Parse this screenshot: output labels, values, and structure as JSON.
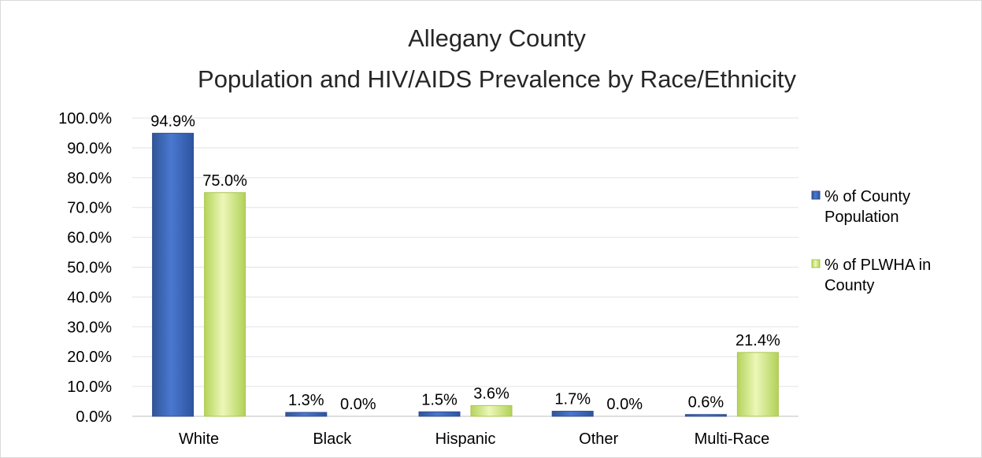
{
  "chart_data": {
    "type": "bar",
    "title": "Allegany County",
    "subtitle": "Population and HIV/AIDS Prevalence by Race/Ethnicity",
    "categories": [
      "White",
      "Black",
      "Hispanic",
      "Other",
      "Multi-Race"
    ],
    "series": [
      {
        "name": "% of County Population",
        "legend_lines": [
          "% of County",
          "Population"
        ],
        "values": [
          94.9,
          1.3,
          1.5,
          1.7,
          0.6
        ],
        "labels": [
          "94.9%",
          "1.3%",
          "1.5%",
          "1.7%",
          "0.6%"
        ],
        "color": "#4472C4"
      },
      {
        "name": "% of PLWHA in County",
        "legend_lines": [
          "% of PLWHA in",
          "County"
        ],
        "values": [
          75.0,
          0.0,
          3.6,
          0.0,
          21.4
        ],
        "labels": [
          "75.0%",
          "0.0%",
          "3.6%",
          "0.0%",
          "21.4%"
        ],
        "color": "#C5E07A"
      }
    ],
    "y_ticks": [
      "0.0%",
      "10.0%",
      "20.0%",
      "30.0%",
      "40.0%",
      "50.0%",
      "60.0%",
      "70.0%",
      "80.0%",
      "90.0%",
      "100.0%"
    ],
    "ylim": [
      0,
      100
    ],
    "grid": true,
    "legend_position": "right"
  }
}
